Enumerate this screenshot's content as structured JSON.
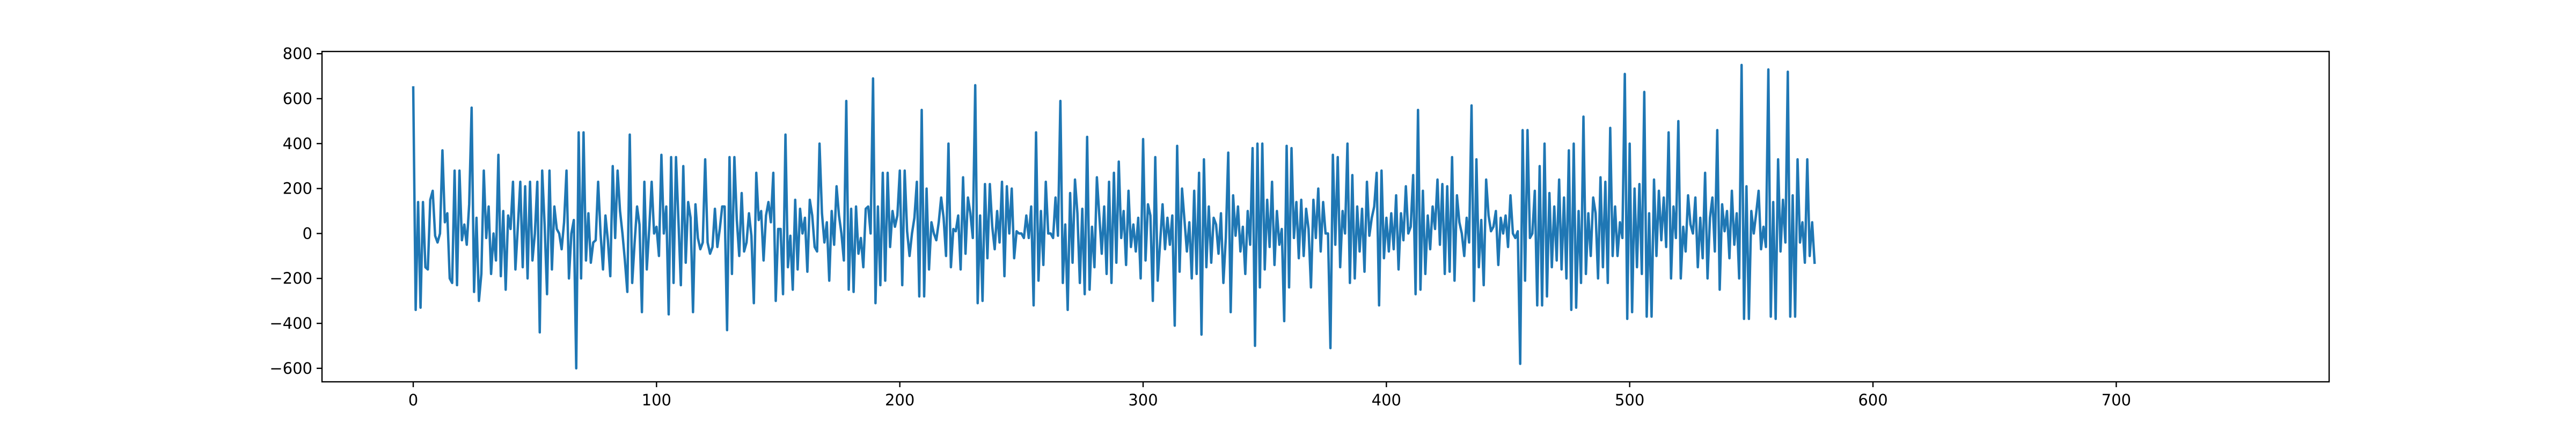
{
  "chart_data": {
    "type": "line",
    "title": "",
    "xlabel": "",
    "ylabel": "",
    "xlim": [
      -37.5,
      787.5
    ],
    "ylim": [
      -660,
      810
    ],
    "xticks": [
      0,
      100,
      200,
      300,
      400,
      500,
      600,
      700
    ],
    "xtick_labels": [
      "0",
      "100",
      "200",
      "300",
      "400",
      "500",
      "600",
      "700"
    ],
    "yticks": [
      -600,
      -400,
      -200,
      0,
      200,
      400,
      600,
      800
    ],
    "ytick_labels": [
      "−600",
      "−400",
      "−200",
      "0",
      "200",
      "400",
      "600",
      "800"
    ],
    "grid": false,
    "legend": "none",
    "series": [
      {
        "color": "#1f77b4",
        "x_start": 0,
        "x_step": 1,
        "values": [
          650,
          -340,
          140,
          -330,
          140,
          -150,
          -160,
          150,
          190,
          -10,
          -40,
          0,
          370,
          50,
          90,
          -200,
          -220,
          280,
          -230,
          280,
          -30,
          40,
          -50,
          130,
          560,
          -260,
          70,
          -300,
          -180,
          280,
          -20,
          120,
          -180,
          0,
          -120,
          350,
          -190,
          100,
          -250,
          80,
          20,
          230,
          -160,
          30,
          230,
          -150,
          210,
          -200,
          230,
          -120,
          0,
          230,
          -440,
          280,
          40,
          -270,
          280,
          -160,
          120,
          20,
          0,
          -70,
          50,
          280,
          -200,
          0,
          60,
          -600,
          450,
          -200,
          450,
          -120,
          90,
          -130,
          -40,
          -30,
          230,
          0,
          -160,
          80,
          -30,
          -190,
          300,
          -20,
          280,
          100,
          0,
          -120,
          -260,
          440,
          -220,
          -40,
          120,
          40,
          -350,
          230,
          -160,
          20,
          230,
          0,
          30,
          -100,
          350,
          0,
          120,
          -360,
          340,
          -220,
          340,
          60,
          -230,
          300,
          -130,
          140,
          70,
          -350,
          130,
          -20,
          -70,
          -40,
          330,
          -40,
          -90,
          -60,
          110,
          -60,
          20,
          120,
          120,
          -430,
          340,
          -180,
          340,
          60,
          -100,
          180,
          -80,
          -40,
          90,
          -10,
          -310,
          270,
          60,
          100,
          -120,
          80,
          140,
          50,
          270,
          -300,
          20,
          20,
          -270,
          440,
          -150,
          -10,
          -250,
          150,
          -160,
          110,
          0,
          70,
          -170,
          150,
          80,
          -60,
          -80,
          400,
          90,
          -40,
          50,
          -210,
          100,
          -50,
          210,
          80,
          0,
          -120,
          590,
          -250,
          110,
          -260,
          120,
          -90,
          -20,
          -150,
          110,
          120,
          0,
          690,
          -310,
          120,
          -230,
          270,
          -210,
          270,
          -60,
          100,
          30,
          80,
          280,
          -230,
          280,
          10,
          -100,
          0,
          70,
          230,
          -280,
          550,
          -280,
          200,
          -160,
          50,
          0,
          -30,
          50,
          160,
          70,
          -100,
          400,
          -150,
          20,
          10,
          80,
          -160,
          250,
          -90,
          160,
          90,
          -20,
          660,
          -310,
          80,
          -300,
          220,
          -110,
          220,
          30,
          -70,
          100,
          -40,
          230,
          -190,
          210,
          0,
          200,
          -110,
          10,
          0,
          0,
          -20,
          80,
          -20,
          120,
          -320,
          450,
          -210,
          100,
          -140,
          230,
          0,
          0,
          -20,
          160,
          -10,
          590,
          -220,
          40,
          -340,
          180,
          -130,
          240,
          90,
          -220,
          110,
          -270,
          430,
          -250,
          30,
          -150,
          250,
          80,
          -90,
          120,
          -180,
          230,
          -220,
          270,
          -130,
          320,
          -20,
          100,
          -140,
          190,
          -60,
          40,
          -80,
          70,
          -200,
          420,
          -120,
          130,
          80,
          -300,
          340,
          -210,
          -40,
          130,
          -70,
          70,
          -50,
          80,
          -410,
          390,
          -170,
          200,
          60,
          -80,
          50,
          -200,
          190,
          -180,
          270,
          -450,
          330,
          -150,
          120,
          -130,
          70,
          40,
          -90,
          90,
          -220,
          -20,
          360,
          -350,
          170,
          -10,
          120,
          -80,
          30,
          -180,
          100,
          -50,
          380,
          -500,
          400,
          -240,
          400,
          -160,
          150,
          -60,
          230,
          -140,
          100,
          -50,
          20,
          -390,
          390,
          -240,
          380,
          -20,
          140,
          -110,
          150,
          -100,
          110,
          20,
          -240,
          150,
          -20,
          200,
          -80,
          140,
          0,
          0,
          -510,
          350,
          -50,
          340,
          -150,
          100,
          0,
          400,
          -220,
          260,
          -200,
          120,
          -80,
          110,
          -170,
          230,
          -10,
          70,
          120,
          270,
          -320,
          280,
          -110,
          70,
          -80,
          90,
          -70,
          170,
          -160,
          90,
          -30,
          210,
          0,
          30,
          260,
          -270,
          550,
          -250,
          190,
          -180,
          80,
          -70,
          120,
          20,
          240,
          -50,
          220,
          -180,
          210,
          -170,
          340,
          -210,
          170,
          50,
          0,
          -100,
          70,
          -40,
          570,
          -300,
          330,
          -150,
          60,
          -230,
          240,
          80,
          10,
          30,
          100,
          -140,
          70,
          0,
          80,
          -60,
          170,
          0,
          -20,
          10,
          -580,
          460,
          -210,
          460,
          -20,
          0,
          190,
          -320,
          300,
          -320,
          400,
          -280,
          180,
          -150,
          120,
          -120,
          240,
          -160,
          160,
          -200,
          370,
          -340,
          400,
          -330,
          100,
          -220,
          520,
          -180,
          90,
          -100,
          160,
          90,
          -200,
          250,
          -150,
          230,
          -220,
          470,
          -100,
          120,
          -100,
          50,
          -20,
          710,
          -380,
          400,
          -350,
          200,
          -150,
          220,
          -180,
          630,
          -370,
          90,
          -370,
          240,
          -100,
          190,
          -30,
          160,
          -60,
          450,
          -200,
          120,
          -20,
          500,
          -200,
          30,
          -80,
          170,
          40,
          0,
          160,
          -150,
          70,
          -110,
          270,
          -200,
          70,
          160,
          -80,
          460,
          -250,
          130,
          10,
          100,
          -110,
          190,
          -50,
          90,
          -200,
          750,
          -380,
          210,
          -380,
          100,
          0,
          90,
          190,
          -70,
          30,
          -60,
          730,
          -370,
          140,
          -380,
          330,
          -80,
          150,
          -40,
          720,
          -370,
          170,
          -370,
          330,
          -40,
          50,
          -130,
          330,
          -100,
          50,
          -130
        ]
      }
    ]
  }
}
